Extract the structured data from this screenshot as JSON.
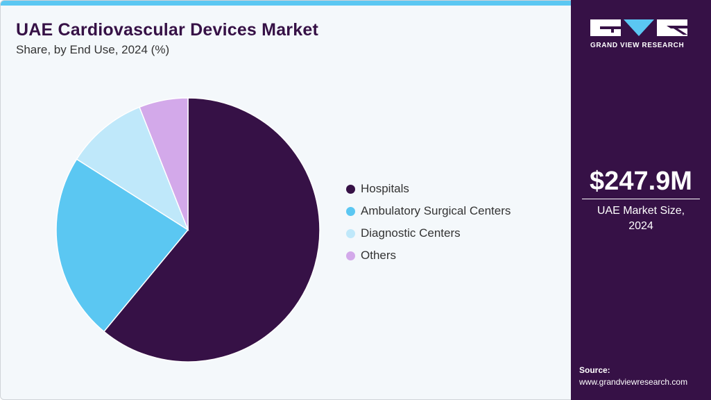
{
  "header": {
    "title": "UAE Cardiovascular Devices Market",
    "subtitle": "Share, by End Use, 2024 (%)"
  },
  "chart_data": {
    "type": "pie",
    "title": "UAE Cardiovascular Devices Market",
    "subtitle": "Share, by End Use, 2024 (%)",
    "categories": [
      "Hospitals",
      "Ambulatory Surgical Centers",
      "Diagnostic Centers",
      "Others"
    ],
    "values": [
      61,
      23,
      10,
      6
    ],
    "colors": [
      "#361146",
      "#5bc7f2",
      "#bfe8fa",
      "#d3a9ea"
    ],
    "legend_position": "right"
  },
  "sidebar": {
    "logo_text": "GRAND VIEW RESEARCH",
    "market_value": "$247.9M",
    "market_label_line1": "UAE Market Size,",
    "market_label_line2": "2024",
    "source_label": "Source:",
    "source_url": "www.grandviewresearch.com"
  }
}
